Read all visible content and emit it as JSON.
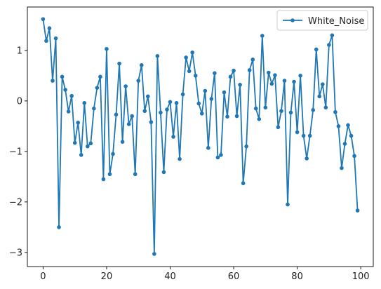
{
  "chart_data": {
    "type": "line",
    "title": "",
    "xlabel": "",
    "ylabel": "",
    "xlim": [
      -4.95,
      103.95
    ],
    "ylim": [
      -3.28,
      1.86
    ],
    "x_ticks": [
      0,
      20,
      40,
      60,
      80,
      100
    ],
    "y_ticks": [
      -3,
      -2,
      -1,
      0,
      1
    ],
    "grid": false,
    "legend_position": "top-right",
    "series": [
      {
        "name": "White_Noise",
        "color": "#1f77b4",
        "marker": "circle",
        "x": [
          0,
          1,
          2,
          3,
          4,
          5,
          6,
          7,
          8,
          9,
          10,
          11,
          12,
          13,
          14,
          15,
          16,
          17,
          18,
          19,
          20,
          21,
          22,
          23,
          24,
          25,
          26,
          27,
          28,
          29,
          30,
          31,
          32,
          33,
          34,
          35,
          36,
          37,
          38,
          39,
          40,
          41,
          42,
          43,
          44,
          45,
          46,
          47,
          48,
          49,
          50,
          51,
          52,
          53,
          54,
          55,
          56,
          57,
          58,
          59,
          60,
          61,
          62,
          63,
          64,
          65,
          66,
          67,
          68,
          69,
          70,
          71,
          72,
          73,
          74,
          75,
          76,
          77,
          78,
          79,
          80,
          81,
          82,
          83,
          84,
          85,
          86,
          87,
          88,
          89,
          90,
          91,
          92,
          93,
          94,
          95,
          96,
          97,
          98,
          99
        ],
        "values": [
          1.62,
          1.19,
          1.44,
          0.4,
          1.24,
          -2.5,
          0.48,
          0.22,
          -0.21,
          0.1,
          -0.83,
          -0.43,
          -1.07,
          -0.04,
          -0.9,
          -0.84,
          -0.15,
          0.26,
          0.48,
          -1.55,
          1.03,
          -1.45,
          -1.05,
          -0.27,
          0.74,
          -0.81,
          0.29,
          -0.46,
          -0.3,
          -1.45,
          0.4,
          0.71,
          -0.2,
          0.09,
          -0.42,
          -3.03,
          0.89,
          -0.23,
          -1.41,
          -0.17,
          -0.02,
          -0.71,
          -0.04,
          -1.15,
          0.13,
          0.86,
          0.59,
          0.96,
          0.5,
          -0.05,
          -0.25,
          0.2,
          -0.93,
          0.04,
          0.55,
          -1.12,
          -1.07,
          0.17,
          -0.31,
          0.48,
          0.6,
          -0.3,
          0.32,
          -1.63,
          -0.9,
          0.61,
          0.82,
          -0.15,
          -0.36,
          1.29,
          -0.13,
          0.56,
          0.34,
          0.51,
          -0.52,
          -0.2,
          0.4,
          -2.05,
          -0.23,
          0.38,
          -0.62,
          0.5,
          -0.69,
          -1.14,
          -0.69,
          -0.18,
          1.02,
          0.09,
          0.33,
          -0.13,
          1.11,
          1.3,
          -0.22,
          -0.5,
          -1.33,
          -0.85,
          -0.48,
          -0.69,
          -1.09,
          -2.17
        ]
      }
    ]
  }
}
